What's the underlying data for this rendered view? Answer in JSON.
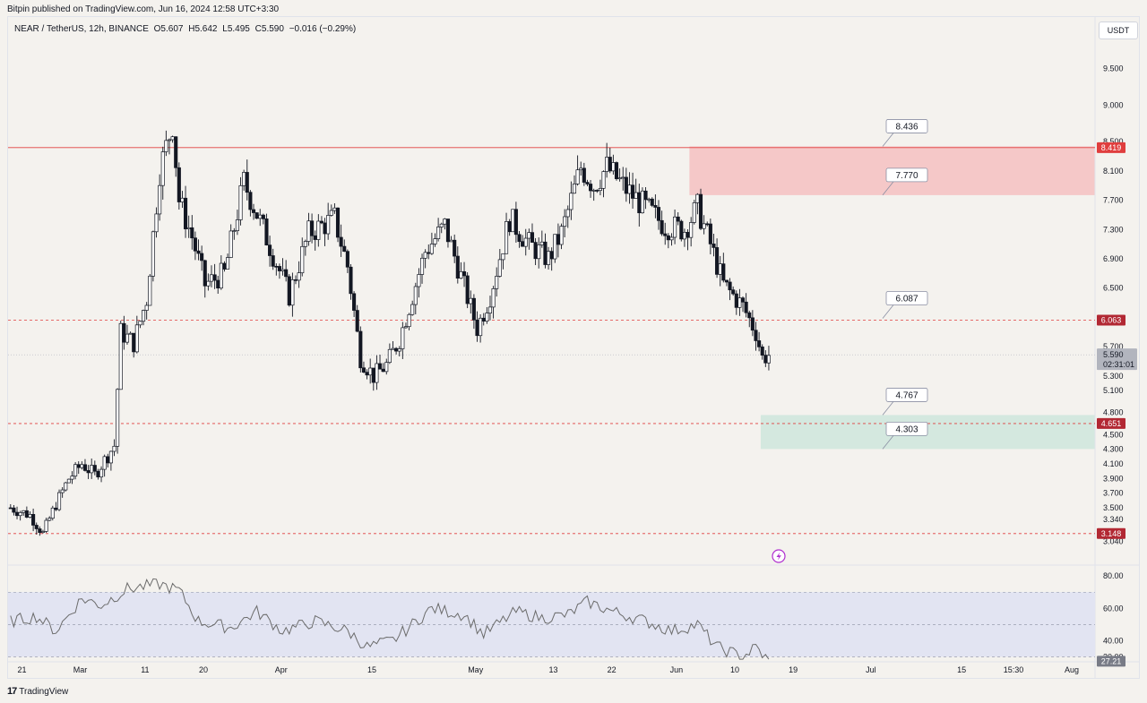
{
  "publisher": "Bitpin published on TradingView.com, Jun 16, 2024 12:58 UTC+3:30",
  "symbol": {
    "name": "NEAR / TetherUS, 12h, BINANCE",
    "open": "O5.607",
    "high": "H5.642",
    "low": "L5.495",
    "close": "C5.590",
    "change": "−0.016 (−0.29%)"
  },
  "currency_button": "USDT",
  "footer_logo": "TradingView",
  "logo_mark": "17",
  "colors": {
    "resistance": "#e03e3e",
    "resistance_zone": "#f5c8c8",
    "support_zone": "#d4e8df",
    "candle": "#131722",
    "rsi": "#6b6b6b",
    "rsi_band": "#e2e4f2",
    "last_price_tag": "#b2b5be",
    "marker": "#b02fcf"
  },
  "icons": {
    "event_marker": "lightning-icon"
  },
  "chart_data": {
    "type": "candlestick",
    "symbol": "NEAR / TetherUS",
    "interval": "12h",
    "exchange": "BINANCE",
    "y_range": [
      2.95,
      9.75
    ],
    "y_ticks": [
      "9.500",
      "9.000",
      "8.500",
      "8.100",
      "7.700",
      "7.300",
      "6.900",
      "6.500",
      "5.700",
      "5.300",
      "5.100",
      "4.800",
      "4.500",
      "4.300",
      "4.100",
      "3.900",
      "3.700",
      "3.500",
      "3.340",
      "3.040"
    ],
    "y_tick_values": [
      9.5,
      9.0,
      8.5,
      8.1,
      7.7,
      7.3,
      6.9,
      6.5,
      5.7,
      5.3,
      5.1,
      4.8,
      4.5,
      4.3,
      4.1,
      3.9,
      3.7,
      3.5,
      3.34,
      3.04
    ],
    "x_ticks": [
      "21",
      "Mar",
      "11",
      "20",
      "Apr",
      "15",
      "May",
      "13",
      "22",
      "Jun",
      "10",
      "19",
      "Jul",
      "15",
      "15:30",
      "Aug"
    ],
    "x_tick_dates": [
      "2024-02-21",
      "2024-03-01",
      "2024-03-11",
      "2024-03-20",
      "2024-04-01",
      "2024-04-15",
      "2024-05-01",
      "2024-05-13",
      "2024-05-22",
      "2024-06-01",
      "2024-06-10",
      "2024-06-19",
      "2024-07-01",
      "2024-07-15",
      "2024-07-23",
      "2024-08-01"
    ],
    "first_candle": "2024-02-19",
    "last_candle": "2024-06-15",
    "candles_per_day": 2,
    "anchor_closes": [
      [
        "2024-02-19",
        3.5
      ],
      [
        "2024-02-22",
        3.4
      ],
      [
        "2024-02-24",
        3.15
      ],
      [
        "2024-02-26",
        3.55
      ],
      [
        "2024-02-28",
        3.9
      ],
      [
        "2024-03-01",
        4.1
      ],
      [
        "2024-03-03",
        3.95
      ],
      [
        "2024-03-06",
        4.35
      ],
      [
        "2024-03-07",
        5.9
      ],
      [
        "2024-03-09",
        5.75
      ],
      [
        "2024-03-11",
        6.35
      ],
      [
        "2024-03-13",
        8.1
      ],
      [
        "2024-03-15",
        8.75
      ],
      [
        "2024-03-16",
        7.7
      ],
      [
        "2024-03-18",
        7.2
      ],
      [
        "2024-03-20",
        6.55
      ],
      [
        "2024-03-23",
        6.7
      ],
      [
        "2024-03-26",
        7.95
      ],
      [
        "2024-03-29",
        7.3
      ],
      [
        "2024-04-02",
        6.4
      ],
      [
        "2024-04-05",
        7.25
      ],
      [
        "2024-04-09",
        7.45
      ],
      [
        "2024-04-11",
        6.8
      ],
      [
        "2024-04-13",
        5.55
      ],
      [
        "2024-04-15",
        5.3
      ],
      [
        "2024-04-17",
        5.45
      ],
      [
        "2024-04-19",
        5.8
      ],
      [
        "2024-04-23",
        7.0
      ],
      [
        "2024-04-26",
        7.35
      ],
      [
        "2024-04-28",
        6.8
      ],
      [
        "2024-05-01",
        5.95
      ],
      [
        "2024-05-03",
        6.4
      ],
      [
        "2024-05-06",
        7.45
      ],
      [
        "2024-05-09",
        7.1
      ],
      [
        "2024-05-12",
        6.9
      ],
      [
        "2024-05-14",
        7.25
      ],
      [
        "2024-05-17",
        8.15
      ],
      [
        "2024-05-19",
        7.9
      ],
      [
        "2024-05-21",
        8.15
      ],
      [
        "2024-05-24",
        7.85
      ],
      [
        "2024-05-27",
        7.6
      ],
      [
        "2024-05-30",
        7.35
      ],
      [
        "2024-06-02",
        7.3
      ],
      [
        "2024-06-04",
        7.6
      ],
      [
        "2024-06-06",
        7.1
      ],
      [
        "2024-06-08",
        6.55
      ],
      [
        "2024-06-11",
        6.25
      ],
      [
        "2024-06-13",
        5.9
      ],
      [
        "2024-06-14",
        5.55
      ],
      [
        "2024-06-15",
        5.59
      ]
    ],
    "zones": [
      {
        "name": "resistance-zone",
        "from": 7.77,
        "to": 8.436,
        "start": "2024-06-03"
      },
      {
        "name": "support-zone",
        "from": 4.303,
        "to": 4.767,
        "start": "2024-06-14"
      }
    ],
    "levels": [
      {
        "value": 8.419,
        "label": "8.419",
        "style": "solid"
      },
      {
        "value": 6.063,
        "label": "6.063",
        "style": "dashed"
      },
      {
        "value": 4.651,
        "label": "4.651",
        "style": "dashed"
      },
      {
        "value": 3.148,
        "label": "3.148",
        "style": "dashed"
      }
    ],
    "callouts": [
      {
        "label": "8.436",
        "value": 8.436
      },
      {
        "label": "7.770",
        "value": 7.77
      },
      {
        "label": "6.087",
        "value": 6.087
      },
      {
        "label": "4.767",
        "value": 4.767
      },
      {
        "label": "4.303",
        "value": 4.303
      }
    ],
    "last_price": {
      "value": 5.59,
      "label": "5.590",
      "countdown": "02:31:01"
    },
    "rsi": {
      "y_range": [
        28,
        84
      ],
      "ticks": [
        "80.00",
        "60.00",
        "40.00",
        "30.00"
      ],
      "tick_values": [
        80,
        60,
        40,
        30
      ],
      "band": [
        30,
        70
      ],
      "mid": 50,
      "last": {
        "value": 27.21,
        "label": "27.21"
      },
      "anchors": [
        [
          "2024-02-19",
          52
        ],
        [
          "2024-02-23",
          55
        ],
        [
          "2024-02-26",
          46
        ],
        [
          "2024-03-01",
          66
        ],
        [
          "2024-03-04",
          62
        ],
        [
          "2024-03-08",
          72
        ],
        [
          "2024-03-13",
          75
        ],
        [
          "2024-03-16",
          71
        ],
        [
          "2024-03-19",
          52
        ],
        [
          "2024-03-24",
          48
        ],
        [
          "2024-03-28",
          58
        ],
        [
          "2024-04-01",
          46
        ],
        [
          "2024-04-06",
          52
        ],
        [
          "2024-04-11",
          46
        ],
        [
          "2024-04-14",
          36
        ],
        [
          "2024-04-18",
          40
        ],
        [
          "2024-04-24",
          60
        ],
        [
          "2024-04-29",
          56
        ],
        [
          "2024-05-02",
          44
        ],
        [
          "2024-05-07",
          58
        ],
        [
          "2024-05-11",
          54
        ],
        [
          "2024-05-15",
          56
        ],
        [
          "2024-05-18",
          64
        ],
        [
          "2024-05-22",
          58
        ],
        [
          "2024-05-27",
          52
        ],
        [
          "2024-05-31",
          46
        ],
        [
          "2024-06-04",
          50
        ],
        [
          "2024-06-07",
          36
        ],
        [
          "2024-06-11",
          30
        ],
        [
          "2024-06-13",
          36
        ],
        [
          "2024-06-15",
          27
        ]
      ]
    }
  }
}
